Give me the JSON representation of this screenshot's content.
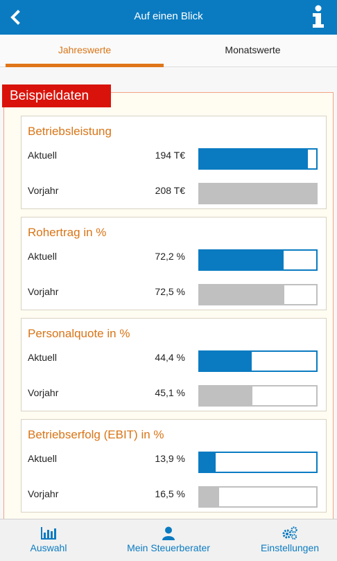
{
  "header": {
    "title": "Auf einen Blick",
    "back_icon": "chevron-left-icon",
    "info_icon": "info-icon"
  },
  "tabs": [
    {
      "label": "Jahreswerte",
      "active": true
    },
    {
      "label": "Monatswerte",
      "active": false
    }
  ],
  "badge": "Beispieldaten",
  "colors": {
    "brand_blue": "#0a7bc1",
    "accent_orange": "#d97416",
    "badge_red": "#d9130b",
    "previous_gray": "#c0c0c0"
  },
  "cards": [
    {
      "title": "Betriebsleistung",
      "rows": [
        {
          "label": "Aktuell",
          "value": "194 T€",
          "fill": 0.93
        },
        {
          "label": "Vorjahr",
          "value": "208 T€",
          "fill": 1.0
        }
      ]
    },
    {
      "title": "Rohertrag in %",
      "rows": [
        {
          "label": "Aktuell",
          "value": "72,2 %",
          "fill": 0.722
        },
        {
          "label": "Vorjahr",
          "value": "72,5 %",
          "fill": 0.725
        }
      ]
    },
    {
      "title": "Personalquote in %",
      "rows": [
        {
          "label": "Aktuell",
          "value": "44,4 %",
          "fill": 0.444
        },
        {
          "label": "Vorjahr",
          "value": "45,1 %",
          "fill": 0.451
        }
      ]
    },
    {
      "title": "Betriebserfolg (EBIT) in %",
      "rows": [
        {
          "label": "Aktuell",
          "value": "13,9 %",
          "fill": 0.139
        },
        {
          "label": "Vorjahr",
          "value": "16,5 %",
          "fill": 0.165
        }
      ]
    }
  ],
  "footer": [
    {
      "label": "Auswahl",
      "icon": "bar-chart-icon"
    },
    {
      "label": "Mein Steuerberater",
      "icon": "person-icon"
    },
    {
      "label": "Einstellungen",
      "icon": "gears-icon"
    }
  ]
}
